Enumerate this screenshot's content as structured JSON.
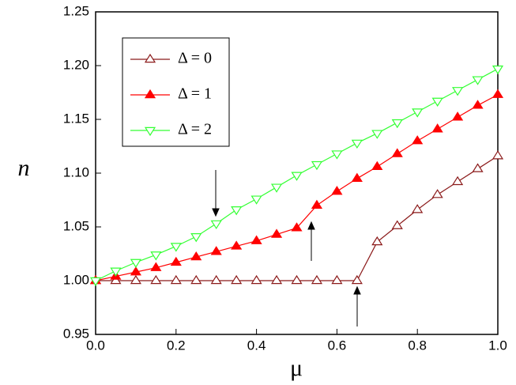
{
  "chart_data": {
    "type": "line",
    "x_label": "μ",
    "y_label": "n",
    "x": [
      0,
      0.05,
      0.1,
      0.15,
      0.2,
      0.25,
      0.3,
      0.35,
      0.4,
      0.45,
      0.5,
      0.55,
      0.6,
      0.65,
      0.7,
      0.75,
      0.8,
      0.85,
      0.9,
      0.95,
      1.0
    ],
    "series": [
      {
        "name": "Δ = 0",
        "color": "#8b1a1a",
        "marker": "triangle-up-open",
        "values": [
          1.0,
          1.0,
          1.0,
          1.0,
          1.0,
          1.0,
          1.0,
          1.0,
          1.0,
          1.0,
          1.0,
          1.0,
          1.0,
          1.0,
          1.036,
          1.051,
          1.066,
          1.08,
          1.092,
          1.104,
          1.116
        ]
      },
      {
        "name": "Δ = 1",
        "color": "#ff0000",
        "marker": "triangle-up-filled",
        "values": [
          1.0,
          1.004,
          1.008,
          1.012,
          1.017,
          1.022,
          1.027,
          1.032,
          1.037,
          1.043,
          1.049,
          1.07,
          1.083,
          1.095,
          1.106,
          1.118,
          1.13,
          1.141,
          1.152,
          1.163,
          1.173
        ]
      },
      {
        "name": "Δ = 2",
        "color": "#33ff33",
        "marker": "triangle-down-open",
        "values": [
          1.0,
          1.009,
          1.017,
          1.024,
          1.032,
          1.041,
          1.053,
          1.066,
          1.076,
          1.087,
          1.098,
          1.108,
          1.118,
          1.128,
          1.137,
          1.147,
          1.157,
          1.167,
          1.177,
          1.187,
          1.197
        ]
      }
    ],
    "xlim": [
      0,
      1.0
    ],
    "ylim": [
      0.95,
      1.25
    ],
    "xticks": [
      {
        "value": 0,
        "label": "0.0"
      },
      0.2,
      0.4,
      0.6,
      0.8,
      {
        "value": 1,
        "label": "1.0"
      }
    ],
    "yticks": [
      0.95,
      {
        "value": 1,
        "label": "1.00"
      },
      1.05,
      {
        "value": 1.1,
        "label": "1.10"
      },
      1.15,
      {
        "value": 1.2,
        "label": "1.20"
      },
      1.25
    ],
    "legend": "upper-left",
    "grid": false
  }
}
